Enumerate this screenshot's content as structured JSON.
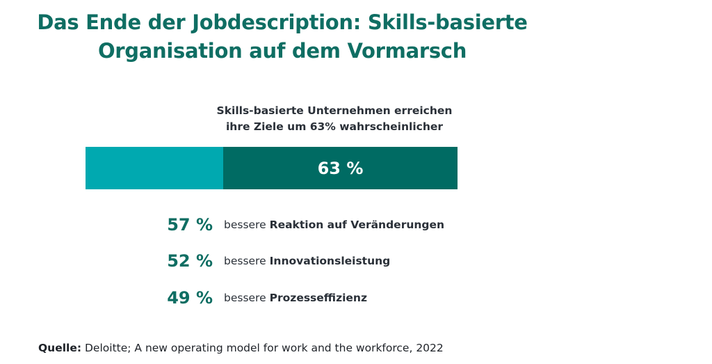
{
  "title": {
    "line1": "Das Ende der Jobdescription: Skills-basierte",
    "line2": "Organisation auf dem Vormarsch"
  },
  "chart_data": {
    "type": "bar",
    "title": "Skills-basierte Unternehmen erreichen ihre Ziele um 63% wahrscheinlicher",
    "subtitle_line1": "Skills-basierte Unternehmen erreichen",
    "subtitle_line2": "ihre Ziele um 63% wahrscheinlicher",
    "main_value": 63,
    "main_label": "63 %",
    "colors": {
      "base": "#00a9b0",
      "highlight": "#006b63",
      "accent_text": "#0f6e63"
    },
    "stats": [
      {
        "value": 57,
        "label": "57 %",
        "prefix": "bessere",
        "text": "Reaktion auf Veränderungen"
      },
      {
        "value": 52,
        "label": "52 %",
        "prefix": "bessere",
        "text": "Innovationsleistung"
      },
      {
        "value": 49,
        "label": "49 %",
        "prefix": "bessere",
        "text": "Prozesseffizienz"
      }
    ]
  },
  "source": {
    "label": "Quelle:",
    "text": "Deloitte; A new operating model for work and the workforce, 2022"
  }
}
